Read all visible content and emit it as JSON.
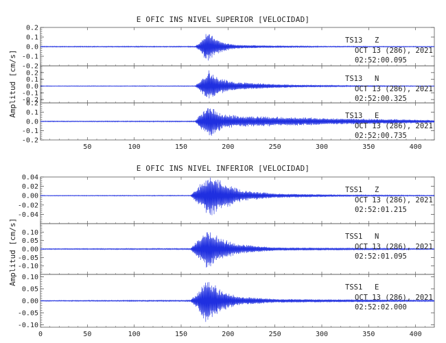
{
  "colors": {
    "trace": "#1f2fe0",
    "frame": "#555555",
    "text": "#222222"
  },
  "panels": [
    {
      "title": "E OFIC INS NIVEL SUPERIOR [VELOCIDAD]",
      "ylabel": "Amplitud [cm/s]",
      "traces": [
        {
          "station": "TS13",
          "component": "Z",
          "date": "OCT 13 (286), 2021",
          "time": "02:52:00.095",
          "ylim": [
            -0.2,
            0.2
          ],
          "yticks": [
            "0.2",
            "0.1",
            "0.0",
            "-0.1",
            "-0.2"
          ]
        },
        {
          "station": "TS13",
          "component": "N",
          "date": "OCT 13 (286), 2021",
          "time": "02:52:00.325",
          "ylim": [
            -0.25,
            0.3
          ],
          "yticks": [
            "0.2",
            "0.1",
            "0.0",
            "-0.1",
            "-0.2"
          ]
        },
        {
          "station": "TS13",
          "component": "E",
          "date": "OCT 13 (286), 2021",
          "time": "02:52:00.735",
          "ylim": [
            -0.2,
            0.2
          ],
          "yticks": [
            "0.2",
            "0.1",
            "0.0",
            "-0.1",
            "-0.2"
          ]
        }
      ],
      "xticks": [
        "50",
        "100",
        "150",
        "200",
        "250",
        "300",
        "350",
        "400"
      ]
    },
    {
      "title": "E OFIC INS NIVEL INFERIOR [VELOCIDAD]",
      "ylabel": "Amplitud [cm/s]",
      "traces": [
        {
          "station": "TSS1",
          "component": "Z",
          "date": "OCT 13 (286), 2021",
          "time": "02:52:01.215",
          "ylim": [
            -0.06,
            0.04
          ],
          "yticks": [
            "0.04",
            "0.02",
            "0.00",
            "-0.02",
            "-0.04"
          ]
        },
        {
          "station": "TSS1",
          "component": "N",
          "date": "OCT 13 (286), 2021",
          "time": "02:52:01.095",
          "ylim": [
            -0.15,
            0.15
          ],
          "yticks": [
            "0.10",
            "0.05",
            "0.00",
            "-0.05",
            "-0.10"
          ]
        },
        {
          "station": "TSS1",
          "component": "E",
          "date": "OCT 13 (286), 2021",
          "time": "02:52:02.000",
          "ylim": [
            -0.11,
            0.11
          ],
          "yticks": [
            "0.10",
            "0.05",
            "0.00",
            "-0.05",
            "-0.10"
          ]
        }
      ],
      "xticks": [
        "0",
        "50",
        "100",
        "150",
        "200",
        "250",
        "300",
        "350",
        "400"
      ]
    }
  ],
  "chart_data": [
    {
      "type": "line",
      "title": "E OFIC INS NIVEL SUPERIOR [VELOCIDAD]",
      "ylabel": "Amplitud [cm/s]",
      "xlim": [
        0,
        420
      ],
      "series": [
        {
          "name": "TS13 Z",
          "ylim": [
            -0.2,
            0.2
          ],
          "envelope": [
            {
              "x": 0,
              "amp": 0.005
            },
            {
              "x": 165,
              "amp": 0.006
            },
            {
              "x": 170,
              "amp": 0.05
            },
            {
              "x": 178,
              "amp": 0.17
            },
            {
              "x": 185,
              "amp": 0.1
            },
            {
              "x": 195,
              "amp": 0.05
            },
            {
              "x": 210,
              "amp": 0.02
            },
            {
              "x": 240,
              "amp": 0.012
            },
            {
              "x": 300,
              "amp": 0.006
            },
            {
              "x": 420,
              "amp": 0.004
            }
          ]
        },
        {
          "name": "TS13 N",
          "ylim": [
            -0.25,
            0.3
          ],
          "envelope": [
            {
              "x": 0,
              "amp": 0.005
            },
            {
              "x": 165,
              "amp": 0.006
            },
            {
              "x": 170,
              "amp": 0.08
            },
            {
              "x": 180,
              "amp": 0.24
            },
            {
              "x": 190,
              "amp": 0.12
            },
            {
              "x": 210,
              "amp": 0.06
            },
            {
              "x": 240,
              "amp": 0.04
            },
            {
              "x": 270,
              "amp": 0.02
            },
            {
              "x": 330,
              "amp": 0.01
            },
            {
              "x": 420,
              "amp": 0.005
            }
          ]
        },
        {
          "name": "TS13 E",
          "ylim": [
            -0.2,
            0.2
          ],
          "envelope": [
            {
              "x": 0,
              "amp": 0.005
            },
            {
              "x": 165,
              "amp": 0.006
            },
            {
              "x": 170,
              "amp": 0.08
            },
            {
              "x": 180,
              "amp": 0.18
            },
            {
              "x": 195,
              "amp": 0.08
            },
            {
              "x": 220,
              "amp": 0.06
            },
            {
              "x": 260,
              "amp": 0.05
            },
            {
              "x": 320,
              "amp": 0.035
            },
            {
              "x": 380,
              "amp": 0.025
            },
            {
              "x": 420,
              "amp": 0.015
            }
          ]
        }
      ]
    },
    {
      "type": "line",
      "title": "E OFIC INS NIVEL INFERIOR [VELOCIDAD]",
      "ylabel": "Amplitud [cm/s]",
      "xlim": [
        0,
        420
      ],
      "series": [
        {
          "name": "TSS1 Z",
          "ylim": [
            -0.06,
            0.04
          ],
          "envelope": [
            {
              "x": 0,
              "amp": 0.0008
            },
            {
              "x": 160,
              "amp": 0.001
            },
            {
              "x": 168,
              "amp": 0.02
            },
            {
              "x": 180,
              "amp": 0.045
            },
            {
              "x": 195,
              "amp": 0.03
            },
            {
              "x": 215,
              "amp": 0.012
            },
            {
              "x": 250,
              "amp": 0.005
            },
            {
              "x": 320,
              "amp": 0.002
            },
            {
              "x": 420,
              "amp": 0.001
            }
          ]
        },
        {
          "name": "TSS1 N",
          "ylim": [
            -0.15,
            0.15
          ],
          "envelope": [
            {
              "x": 0,
              "amp": 0.003
            },
            {
              "x": 160,
              "amp": 0.004
            },
            {
              "x": 168,
              "amp": 0.06
            },
            {
              "x": 178,
              "amp": 0.13
            },
            {
              "x": 190,
              "amp": 0.07
            },
            {
              "x": 210,
              "amp": 0.03
            },
            {
              "x": 250,
              "amp": 0.01
            },
            {
              "x": 420,
              "amp": 0.003
            }
          ]
        },
        {
          "name": "TSS1 E",
          "ylim": [
            -0.11,
            0.11
          ],
          "envelope": [
            {
              "x": 0,
              "amp": 0.002
            },
            {
              "x": 160,
              "amp": 0.003
            },
            {
              "x": 168,
              "amp": 0.04
            },
            {
              "x": 178,
              "amp": 0.1
            },
            {
              "x": 190,
              "amp": 0.05
            },
            {
              "x": 210,
              "amp": 0.02
            },
            {
              "x": 250,
              "amp": 0.008
            },
            {
              "x": 420,
              "amp": 0.003
            }
          ]
        }
      ]
    }
  ]
}
